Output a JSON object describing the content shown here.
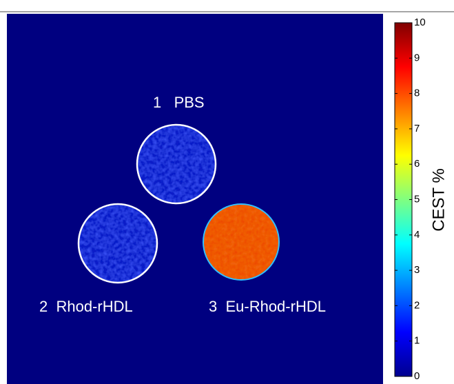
{
  "image": {
    "labels": [
      "1   PBS",
      "2  Rhod-rHDL",
      "3  Eu-Rhod-rHDL"
    ]
  },
  "colorbar": {
    "label": "CEST %",
    "lim": [
      0,
      10
    ],
    "ticks": [
      0,
      1,
      2,
      3,
      4,
      5,
      6,
      7,
      8,
      9,
      10
    ]
  }
}
